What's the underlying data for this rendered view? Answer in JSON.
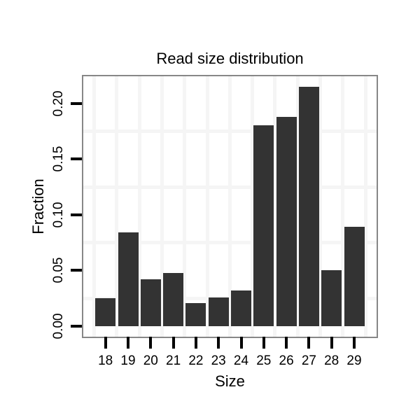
{
  "chart_data": {
    "type": "bar",
    "title": "Read size distribution",
    "xlabel": "Size",
    "ylabel": "Fraction",
    "categories": [
      "18",
      "19",
      "20",
      "21",
      "22",
      "23",
      "24",
      "25",
      "26",
      "27",
      "28",
      "29"
    ],
    "values": [
      0.025,
      0.084,
      0.042,
      0.048,
      0.021,
      0.026,
      0.032,
      0.18,
      0.188,
      0.215,
      0.05,
      0.089
    ],
    "y_tick_labels": [
      "0.00",
      "0.05",
      "0.10",
      "0.15",
      "0.20"
    ],
    "y_tick_values": [
      0.0,
      0.05,
      0.1,
      0.15,
      0.2
    ],
    "y_minor_values": [
      0.025,
      0.075,
      0.125,
      0.175
    ],
    "ylim": [
      0,
      0.226
    ],
    "legend": "none",
    "grid": "minor-only",
    "colors": {
      "bar": "#333333",
      "panel_border": "#878787",
      "grid_minor": "#f5f5f5",
      "tick": "#000000",
      "text": "#000000",
      "background": "#ffffff"
    }
  }
}
